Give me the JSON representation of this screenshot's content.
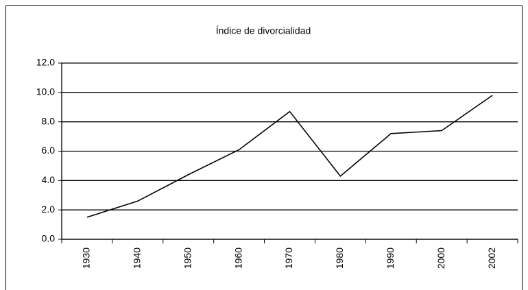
{
  "chart_data": {
    "type": "line",
    "title": "Índice de divorcialidad",
    "categories": [
      "1930",
      "1940",
      "1950",
      "1960",
      "1970",
      "1980",
      "1990",
      "2000",
      "2002"
    ],
    "values": [
      1.5,
      2.6,
      4.4,
      6.1,
      8.7,
      4.3,
      7.2,
      7.4,
      9.8
    ],
    "color": "#000000",
    "ylim": [
      0,
      12
    ],
    "yticks": [
      {
        "value": 0,
        "label": "0.0"
      },
      {
        "value": 2,
        "label": "2.0"
      },
      {
        "value": 4,
        "label": "4.0"
      },
      {
        "value": 6,
        "label": "6.0"
      },
      {
        "value": 8,
        "label": "8.0"
      },
      {
        "value": 10,
        "label": "10.0"
      },
      {
        "value": 12,
        "label": "12.0"
      }
    ],
    "grid": true
  }
}
